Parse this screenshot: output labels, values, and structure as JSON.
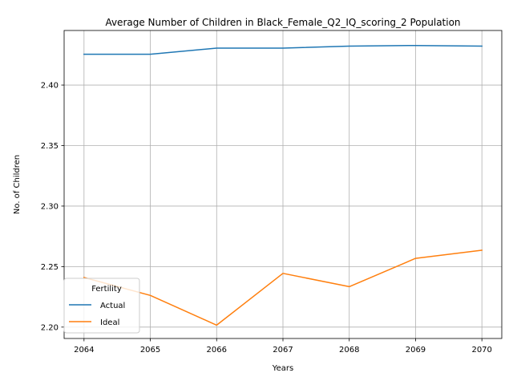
{
  "chart_data": {
    "type": "line",
    "title": "Average Number of Children in Black_Female_Q2_IQ_scoring_2 Population",
    "xlabel": "Years",
    "ylabel": "No. of Children",
    "x": [
      2064,
      2065,
      2066,
      2067,
      2068,
      2069,
      2070
    ],
    "xlim": [
      2063.7,
      2070.3
    ],
    "ylim": [
      2.1906,
      2.4451
    ],
    "yticks": [
      2.2,
      2.25,
      2.3,
      2.35,
      2.4
    ],
    "ytick_labels": [
      "2.20",
      "2.25",
      "2.30",
      "2.35",
      "2.40"
    ],
    "grid": true,
    "legend": {
      "title": "Fertility",
      "position": "lower-left"
    },
    "series": [
      {
        "name": "Actual",
        "color": "#1f77b4",
        "values": [
          2.4255,
          2.4255,
          2.4305,
          2.4305,
          2.4322,
          2.4327,
          2.4322
        ]
      },
      {
        "name": "Ideal",
        "color": "#ff7f0e",
        "values": [
          2.241,
          2.2262,
          2.2016,
          2.2444,
          2.2334,
          2.2568,
          2.2635
        ]
      }
    ]
  }
}
